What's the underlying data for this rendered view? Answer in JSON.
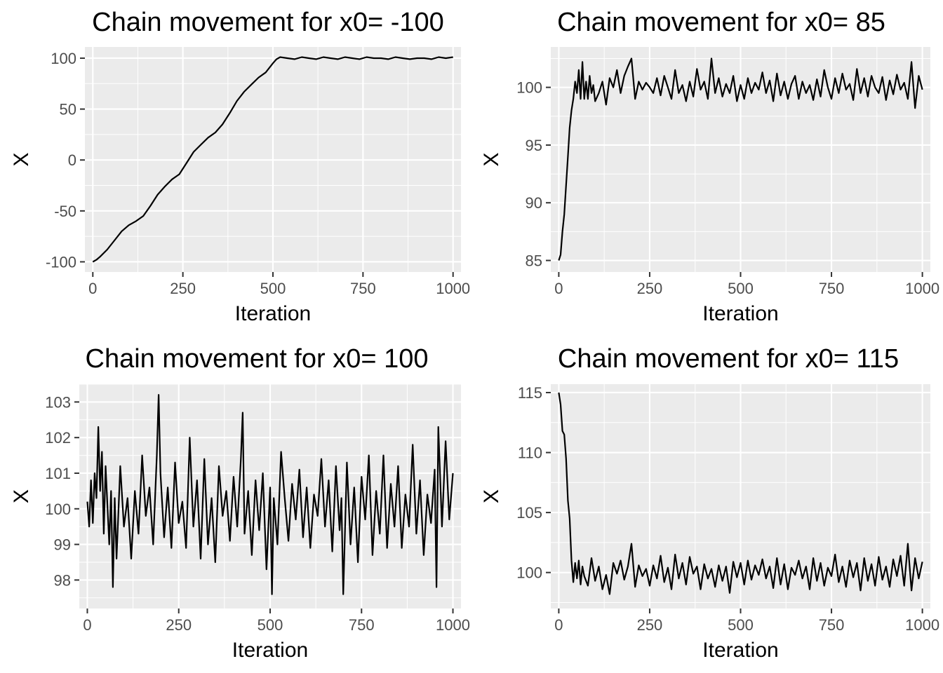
{
  "colors": {
    "panel_background": "#EBEBEB",
    "grid": "#FFFFFF",
    "line": "#000000",
    "tick_text": "#4D4D4D"
  },
  "chart_data": [
    {
      "type": "line",
      "title": "Chain movement for x0= -100",
      "xlabel": "Iteration",
      "ylabel": "X",
      "xlim": [
        -22,
        1022
      ],
      "ylim": [
        -110,
        111
      ],
      "x_ticks": [
        0,
        250,
        500,
        750,
        1000
      ],
      "x_tick_labels": [
        "0",
        "250",
        "500",
        "750",
        "1000"
      ],
      "y_ticks": [
        -100,
        -50,
        0,
        50,
        100
      ],
      "y_tick_labels": [
        "-100",
        "-50",
        "0",
        "50",
        "100"
      ],
      "grid": true,
      "series": [
        {
          "x": [
            0,
            10,
            20,
            40,
            60,
            80,
            100,
            120,
            140,
            160,
            180,
            200,
            220,
            240,
            260,
            280,
            300,
            320,
            340,
            360,
            380,
            400,
            420,
            440,
            460,
            480,
            500,
            510,
            520,
            540,
            560,
            580,
            600,
            620,
            640,
            660,
            680,
            700,
            720,
            740,
            760,
            780,
            800,
            820,
            840,
            860,
            880,
            900,
            920,
            940,
            960,
            980,
            1000
          ],
          "y": [
            -100,
            -98,
            -95,
            -88,
            -79,
            -70,
            -64,
            -60,
            -55,
            -45,
            -34,
            -26,
            -19,
            -14,
            -3,
            8,
            15,
            22,
            27,
            35,
            46,
            58,
            67,
            74,
            81,
            86,
            95,
            99,
            101,
            100,
            99,
            101,
            100,
            99,
            101,
            100,
            99,
            101,
            100,
            99,
            101,
            100,
            100,
            99,
            101,
            100,
            99,
            100,
            100,
            99,
            101,
            100,
            101
          ]
        }
      ]
    },
    {
      "type": "line",
      "title": "Chain movement for x0= 85",
      "xlabel": "Iteration",
      "ylabel": "X",
      "xlim": [
        -22,
        1022
      ],
      "ylim": [
        84,
        103.5
      ],
      "x_ticks": [
        0,
        250,
        500,
        750,
        1000
      ],
      "x_tick_labels": [
        "0",
        "250",
        "500",
        "750",
        "1000"
      ],
      "y_ticks": [
        85,
        90,
        95,
        100
      ],
      "y_tick_labels": [
        "85",
        "90",
        "95",
        "100"
      ],
      "grid": true,
      "series": [
        {
          "x": [
            0,
            5,
            10,
            15,
            20,
            25,
            30,
            35,
            40,
            45,
            50,
            55,
            60,
            65,
            70,
            75,
            80,
            85,
            90,
            95,
            100,
            110,
            120,
            130,
            140,
            150,
            160,
            170,
            180,
            190,
            200,
            210,
            220,
            230,
            240,
            250,
            260,
            270,
            280,
            290,
            300,
            310,
            320,
            330,
            340,
            350,
            360,
            370,
            380,
            390,
            400,
            410,
            420,
            430,
            440,
            450,
            460,
            470,
            480,
            490,
            500,
            510,
            520,
            530,
            540,
            550,
            560,
            570,
            580,
            590,
            600,
            610,
            620,
            630,
            640,
            650,
            660,
            670,
            680,
            690,
            700,
            710,
            720,
            730,
            740,
            750,
            760,
            770,
            780,
            790,
            800,
            810,
            820,
            830,
            840,
            850,
            860,
            870,
            880,
            890,
            900,
            910,
            920,
            930,
            940,
            950,
            960,
            970,
            980,
            990,
            1000
          ],
          "y": [
            85,
            85.5,
            87.5,
            89,
            91.5,
            94,
            96.5,
            98,
            99,
            100.5,
            99.5,
            101.5,
            99,
            102.2,
            99,
            100.5,
            99,
            101,
            99.5,
            100.2,
            98.8,
            99.5,
            100.5,
            98.5,
            100.8,
            100,
            101.5,
            99.5,
            101,
            101.8,
            102.5,
            99,
            100.5,
            99.8,
            100.4,
            100,
            99.5,
            100.8,
            99.3,
            101,
            100,
            99,
            101.5,
            99.5,
            100.2,
            98.8,
            100.5,
            99.2,
            101.6,
            99.8,
            100.5,
            99,
            102.5,
            99.5,
            100.8,
            99.2,
            100.3,
            99.5,
            101,
            98.8,
            100.2,
            99,
            100.8,
            99.5,
            100.4,
            99.8,
            101.3,
            99.5,
            100.6,
            98.8,
            101.2,
            99.3,
            100.5,
            99,
            100.3,
            101,
            99,
            100.5,
            99.5,
            100.2,
            98.9,
            100.7,
            99.2,
            101.5,
            100,
            99,
            100.8,
            99.5,
            101.2,
            99.8,
            100.3,
            98.9,
            101.6,
            99.5,
            100.8,
            99.2,
            101,
            100,
            99.5,
            100.9,
            98.9,
            100.6,
            99.4,
            101.1,
            99.8,
            100.4,
            99,
            102.2,
            98.2,
            101,
            99.8
          ]
        }
      ]
    },
    {
      "type": "line",
      "title": "Chain movement for x0= 100",
      "xlabel": "Iteration",
      "ylabel": "X",
      "xlim": [
        -22,
        1022
      ],
      "ylim": [
        97.2,
        103.5
      ],
      "x_ticks": [
        0,
        250,
        500,
        750,
        1000
      ],
      "x_tick_labels": [
        "0",
        "250",
        "500",
        "750",
        "1000"
      ],
      "y_ticks": [
        98,
        99,
        100,
        101,
        102,
        103
      ],
      "y_tick_labels": [
        "98",
        "99",
        "100",
        "101",
        "102",
        "103"
      ],
      "grid": true,
      "series": [
        {
          "x": [
            0,
            5,
            10,
            15,
            20,
            25,
            30,
            35,
            40,
            45,
            50,
            55,
            60,
            65,
            70,
            75,
            80,
            90,
            100,
            110,
            120,
            130,
            140,
            150,
            160,
            170,
            180,
            190,
            195,
            200,
            210,
            220,
            230,
            240,
            250,
            260,
            270,
            280,
            290,
            300,
            310,
            320,
            330,
            340,
            350,
            360,
            370,
            380,
            390,
            400,
            410,
            420,
            425,
            430,
            440,
            450,
            460,
            470,
            480,
            490,
            500,
            505,
            510,
            520,
            530,
            540,
            550,
            560,
            570,
            580,
            590,
            600,
            610,
            620,
            630,
            640,
            650,
            660,
            670,
            680,
            690,
            695,
            700,
            710,
            720,
            730,
            740,
            750,
            760,
            770,
            780,
            790,
            800,
            810,
            820,
            830,
            840,
            850,
            860,
            870,
            880,
            890,
            900,
            910,
            920,
            930,
            940,
            950,
            955,
            960,
            970,
            980,
            990,
            1000
          ],
          "y": [
            100.2,
            99.5,
            100.8,
            99.6,
            101,
            100.3,
            102.3,
            100.5,
            101.6,
            99.3,
            101.2,
            100.1,
            99,
            100.5,
            97.8,
            100.3,
            98.6,
            101.2,
            99.5,
            100.3,
            98.6,
            100.5,
            99.3,
            101.5,
            99.8,
            100.6,
            99,
            101.5,
            103.2,
            101,
            99.2,
            100.6,
            98.9,
            101.3,
            99.6,
            100.2,
            98.9,
            102,
            99.5,
            100.8,
            98.6,
            101.4,
            99,
            100.3,
            98.5,
            101.2,
            99.8,
            100.5,
            99.1,
            100.9,
            99.5,
            101.4,
            102.7,
            99.3,
            100.5,
            98.7,
            100.8,
            99.4,
            101,
            98.3,
            100.6,
            97.6,
            100.3,
            99,
            101.6,
            100.3,
            99.1,
            100.7,
            99.7,
            101.1,
            99.2,
            100.6,
            98.9,
            100.4,
            99.8,
            101.4,
            99.5,
            100.8,
            98.8,
            101.2,
            99.4,
            100.3,
            97.6,
            101.3,
            99,
            100.6,
            98.5,
            100.9,
            99.7,
            101.5,
            98.7,
            100.5,
            99.3,
            101.5,
            98.9,
            100.7,
            99.5,
            101.2,
            98.9,
            100.4,
            99.5,
            101.8,
            99.3,
            100.8,
            98.7,
            100.4,
            99.6,
            101.1,
            97.8,
            102.3,
            99.5,
            101.9,
            99.7,
            101
          ]
        }
      ]
    },
    {
      "type": "line",
      "title": "Chain movement for x0= 115",
      "xlabel": "Iteration",
      "ylabel": "X",
      "xlim": [
        -22,
        1022
      ],
      "ylim": [
        97,
        115.7
      ],
      "x_ticks": [
        0,
        250,
        500,
        750,
        1000
      ],
      "x_tick_labels": [
        "0",
        "250",
        "500",
        "750",
        "1000"
      ],
      "y_ticks": [
        100,
        105,
        110,
        115
      ],
      "y_tick_labels": [
        "100",
        "105",
        "110",
        "115"
      ],
      "grid": true,
      "series": [
        {
          "x": [
            0,
            5,
            10,
            15,
            20,
            25,
            30,
            35,
            40,
            45,
            50,
            55,
            60,
            65,
            70,
            80,
            90,
            100,
            110,
            120,
            130,
            140,
            150,
            160,
            170,
            180,
            190,
            200,
            210,
            220,
            230,
            240,
            250,
            260,
            270,
            280,
            290,
            300,
            310,
            320,
            330,
            340,
            350,
            360,
            370,
            380,
            390,
            400,
            410,
            420,
            430,
            440,
            450,
            460,
            470,
            480,
            490,
            500,
            510,
            520,
            530,
            540,
            550,
            560,
            570,
            580,
            590,
            600,
            610,
            620,
            630,
            640,
            650,
            660,
            670,
            680,
            690,
            700,
            710,
            720,
            730,
            740,
            750,
            760,
            770,
            780,
            790,
            800,
            810,
            820,
            830,
            840,
            850,
            860,
            870,
            880,
            890,
            900,
            910,
            920,
            930,
            940,
            950,
            960,
            970,
            980,
            990,
            1000
          ],
          "y": [
            115,
            114,
            111.8,
            111.5,
            109.5,
            106,
            104.5,
            101,
            99.2,
            100.8,
            99.5,
            101,
            99,
            100.5,
            99.7,
            98.9,
            101.2,
            99.3,
            100.5,
            98.6,
            99.8,
            98.2,
            100.8,
            99.9,
            101,
            99.4,
            100.5,
            102.4,
            98.8,
            100.6,
            99.7,
            100.3,
            98.9,
            100.6,
            99.5,
            101.4,
            99.2,
            100.4,
            98.6,
            101.5,
            99.5,
            100.8,
            99,
            101.3,
            99.9,
            100.5,
            98.6,
            100.7,
            99.5,
            100.3,
            98.8,
            100.6,
            99.3,
            100.5,
            98.3,
            100.9,
            99.6,
            100.8,
            99,
            101,
            99.4,
            100.6,
            99.8,
            101.1,
            99.5,
            100.5,
            98.7,
            101.2,
            99,
            100.7,
            98.6,
            100.4,
            99.8,
            101,
            99.5,
            100.5,
            98.6,
            101.2,
            99.3,
            100.8,
            98.9,
            100.4,
            99.7,
            101.5,
            99.2,
            100.5,
            98.8,
            101,
            99.6,
            100.8,
            98.5,
            101.2,
            99.3,
            100.7,
            98.9,
            101.3,
            99.4,
            100.5,
            98.8,
            101.1,
            99.7,
            101.4,
            98.9,
            102.4,
            98.5,
            101.2,
            99.5,
            100.9
          ]
        }
      ]
    }
  ]
}
